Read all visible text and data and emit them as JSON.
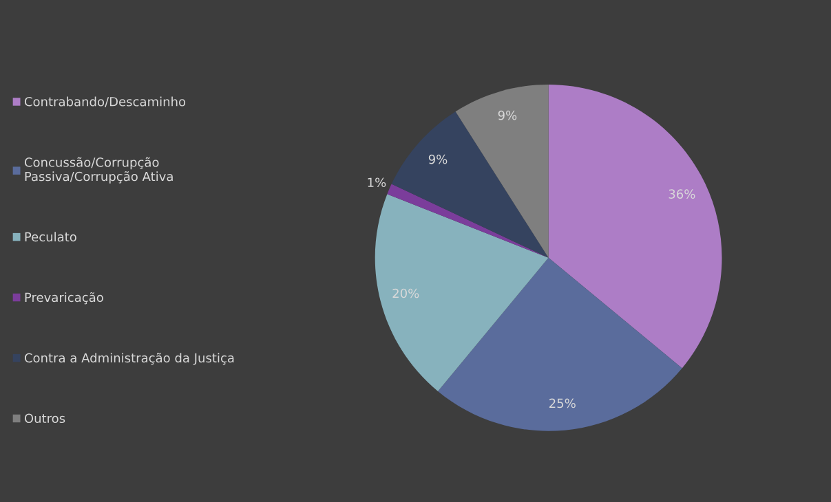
{
  "chart_data": {
    "type": "pie",
    "categories": [
      "Contrabando/Descaminho",
      "Concussão/Corrupção\nPassiva/Corrupção Ativa",
      "Peculato",
      "Prevaricação",
      "Contra a Administração da Justiça",
      "Outros"
    ],
    "values": [
      36,
      25,
      20,
      1,
      9,
      9
    ],
    "colors": [
      "#ad7dc6",
      "#5a6c9c",
      "#87b2bd",
      "#7b3d9b",
      "#35435f",
      "#7f7f7f"
    ],
    "value_labels": [
      "36%",
      "25%",
      "20%",
      "1%",
      "9%",
      "9%"
    ],
    "legend": "left"
  }
}
